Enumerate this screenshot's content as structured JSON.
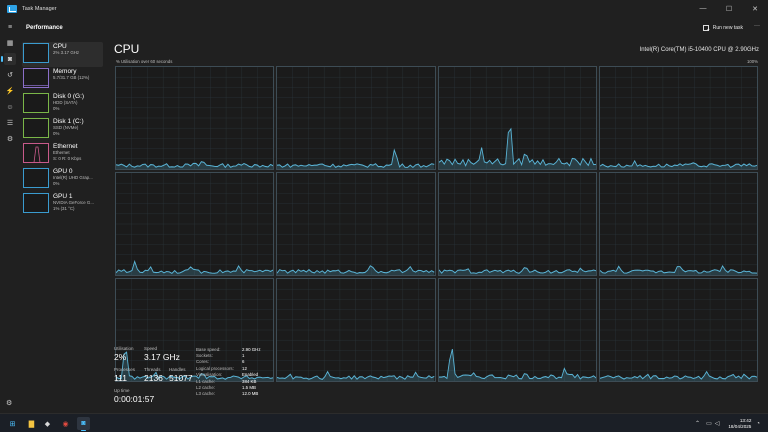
{
  "window": {
    "title": "Task Manager"
  },
  "header": {
    "section": "Performance",
    "run_new_task": "Run new task",
    "more": "···"
  },
  "rail": [
    {
      "name": "hamburger-icon",
      "glyph": "≡"
    },
    {
      "name": "processes-icon",
      "glyph": "▦"
    },
    {
      "name": "performance-icon",
      "glyph": "◙"
    },
    {
      "name": "app-history-icon",
      "glyph": "↺"
    },
    {
      "name": "startup-apps-icon",
      "glyph": "⚡"
    },
    {
      "name": "users-icon",
      "glyph": "☺"
    },
    {
      "name": "details-icon",
      "glyph": "☰"
    },
    {
      "name": "services-icon",
      "glyph": "⚙"
    }
  ],
  "perf_items": [
    {
      "name": "CPU",
      "sub1": "2% 3.17 GHz",
      "sub2": "",
      "color": "#3a9bcf",
      "selected": true
    },
    {
      "name": "Memory",
      "sub1": "5.7/31.7 GB (12%)",
      "sub2": "",
      "color": "#8b6fc9",
      "selected": false
    },
    {
      "name": "Disk 0 (G:)",
      "sub1": "HDD (SATA)",
      "sub2": "0%",
      "color": "#7ab648",
      "selected": false
    },
    {
      "name": "Disk 1 (C:)",
      "sub1": "SSD (NVMe)",
      "sub2": "0%",
      "color": "#7ab648",
      "selected": false
    },
    {
      "name": "Ethernet",
      "sub1": "Ethernet",
      "sub2": "S: 0 R: 0 Kbps",
      "color": "#c85a8a",
      "selected": false
    },
    {
      "name": "GPU 0",
      "sub1": "Intel(R) UHD Grap...",
      "sub2": "0%",
      "color": "#3a9bcf",
      "selected": false
    },
    {
      "name": "GPU 1",
      "sub1": "NVIDIA GeForce G...",
      "sub2": "1% (31 °C)",
      "color": "#3a9bcf",
      "selected": false
    }
  ],
  "cpu": {
    "title": "CPU",
    "model": "Intel(R) Core(TM) i5-10400 CPU @ 2.90GHz",
    "util_label": "% Utilisation over 60 seconds",
    "max_label": "100%",
    "line_color": "#5ab4d6"
  },
  "stats": {
    "utilisation": {
      "label": "Utilisation",
      "value": "2%"
    },
    "speed": {
      "label": "Speed",
      "value": "3.17 GHz"
    },
    "processes": {
      "label": "Processes",
      "value": "111"
    },
    "threads": {
      "label": "Threads",
      "value": "2136"
    },
    "handles": {
      "label": "Handles",
      "value": "51077"
    },
    "uptime": {
      "label": "Up time",
      "value": "0:00:01:57"
    }
  },
  "details": [
    {
      "k": "Base speed:",
      "v": "2.90 GHz"
    },
    {
      "k": "Sockets:",
      "v": "1"
    },
    {
      "k": "Cores:",
      "v": "6"
    },
    {
      "k": "Logical processors:",
      "v": "12"
    },
    {
      "k": "Virtualisation:",
      "v": "Enabled"
    },
    {
      "k": "L1 cache:",
      "v": "384 KB"
    },
    {
      "k": "L2 cache:",
      "v": "1.5 MB"
    },
    {
      "k": "L3 cache:",
      "v": "12.0 MB"
    }
  ],
  "cores": [
    {
      "peaks": [
        [
          0.5,
          8
        ],
        [
          0.55,
          10
        ],
        [
          0.82,
          7
        ]
      ],
      "base": 4
    },
    {
      "peaks": [
        [
          0.28,
          7
        ],
        [
          0.75,
          22
        ],
        [
          0.6,
          6
        ]
      ],
      "base": 4
    },
    {
      "peaks": [
        [
          0.27,
          22
        ],
        [
          0.45,
          55
        ],
        [
          0.56,
          12
        ],
        [
          0.55,
          20
        ],
        [
          0.05,
          10
        ],
        [
          0.88,
          7
        ]
      ],
      "base": 8
    },
    {
      "peaks": [
        [
          0.22,
          8
        ],
        [
          0.55,
          6
        ],
        [
          0.6,
          8
        ],
        [
          0.88,
          5
        ]
      ],
      "base": 4
    },
    {
      "peaks": [
        [
          0.12,
          14
        ],
        [
          0.22,
          8
        ],
        [
          0.48,
          10
        ],
        [
          0.78,
          9
        ]
      ],
      "base": 4
    },
    {
      "peaks": [
        [
          0.2,
          6
        ],
        [
          0.6,
          12
        ],
        [
          0.85,
          9
        ]
      ],
      "base": 4
    },
    {
      "peaks": [
        [
          0.18,
          8
        ],
        [
          0.35,
          6
        ],
        [
          0.55,
          10
        ],
        [
          0.9,
          7
        ]
      ],
      "base": 4
    },
    {
      "peaks": [
        [
          0.12,
          9
        ],
        [
          0.28,
          6
        ],
        [
          0.5,
          12
        ],
        [
          0.78,
          9
        ]
      ],
      "base": 4
    },
    {
      "peaks": [
        [
          0.06,
          40
        ],
        [
          0.25,
          10
        ],
        [
          0.5,
          7
        ],
        [
          0.55,
          10
        ]
      ],
      "base": 4
    },
    {
      "peaks": [
        [
          0.08,
          8
        ],
        [
          0.32,
          10
        ],
        [
          0.72,
          7
        ],
        [
          0.88,
          9
        ]
      ],
      "base": 4
    },
    {
      "peaks": [
        [
          0.08,
          38
        ],
        [
          0.22,
          8
        ],
        [
          0.55,
          10
        ],
        [
          0.8,
          14
        ]
      ],
      "base": 5
    },
    {
      "peaks": [
        [
          0.3,
          8
        ],
        [
          0.68,
          10
        ],
        [
          0.85,
          7
        ],
        [
          0.92,
          8
        ]
      ],
      "base": 4
    }
  ],
  "taskbar": {
    "apps": [
      {
        "name": "start-icon",
        "glyph": "⊞",
        "color": "#4cc2ff",
        "active": false
      },
      {
        "name": "file-explorer-icon",
        "glyph": "▇",
        "color": "#f5c542",
        "active": false
      },
      {
        "name": "game-app-icon",
        "glyph": "◆",
        "color": "#d8d8d8",
        "active": false
      },
      {
        "name": "shield-app-icon",
        "glyph": "◉",
        "color": "#e04a3f",
        "active": false
      },
      {
        "name": "task-manager-icon",
        "glyph": "◙",
        "color": "#4cc2ff",
        "active": true
      }
    ],
    "time": "13:42",
    "date": "18/04/2025"
  }
}
